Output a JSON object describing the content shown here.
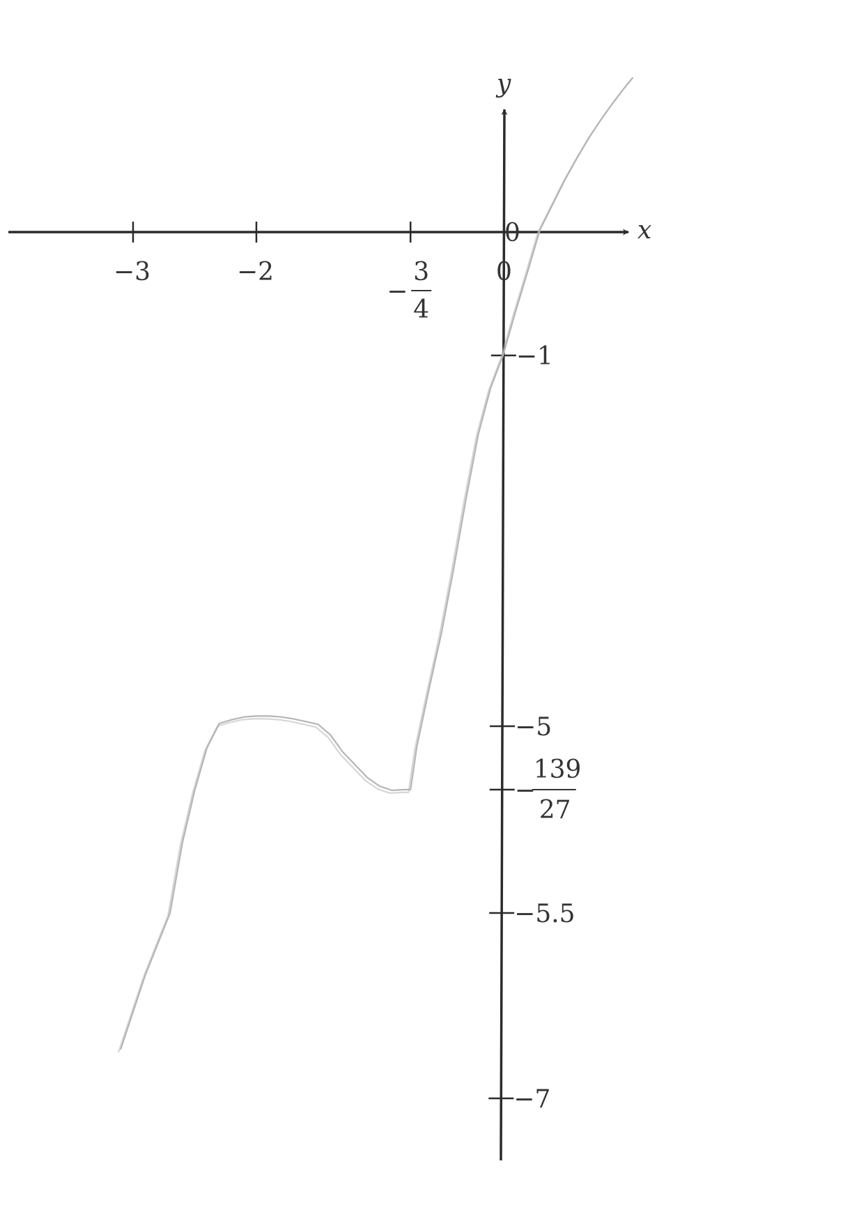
{
  "chart_data": {
    "type": "line",
    "title": "",
    "xlabel": "x",
    "ylabel": "y",
    "xlim": [
      -4.0,
      1.2
    ],
    "ylim": [
      -7.5,
      1.25
    ],
    "grid": false,
    "curve_color": "#b5b5b5",
    "axis_color": "#2b2b2b",
    "origin_labels": [
      "0",
      "0"
    ],
    "x_ticks": [
      {
        "value": -3,
        "label": "−3"
      },
      {
        "value": -2,
        "label": "−2"
      },
      {
        "value": -0.75,
        "label_sign": "−",
        "label_num": "3",
        "label_den": "4"
      }
    ],
    "y_ticks": [
      {
        "value": -1,
        "label": "−1"
      },
      {
        "value": -5,
        "label": "−5"
      },
      {
        "value": -5.148,
        "label_sign": "−",
        "label_num": "139",
        "label_den": "27"
      },
      {
        "value": -5.5,
        "label": "−5.5"
      },
      {
        "value": -7,
        "label": "−7"
      }
    ],
    "series": [
      {
        "x": [
          -3.1,
          -3.0,
          -2.9,
          -2.8,
          -2.7,
          -2.6,
          -2.5,
          -2.4,
          -2.3,
          -2.2,
          -2.1,
          -2.0,
          -1.9,
          -1.8,
          -1.7,
          -1.6,
          -1.5,
          -1.4,
          -1.3,
          -1.2,
          -1.1,
          -1.0,
          -0.9,
          -0.8,
          -0.75,
          -0.7,
          -0.6,
          -0.5,
          -0.4,
          -0.3,
          -0.2,
          -0.1,
          0.0,
          0.1,
          0.2,
          0.3,
          0.4,
          0.5,
          0.6,
          0.7,
          0.8,
          0.9,
          1.0,
          1.05
        ],
        "y": [
          -6.6,
          -6.3,
          -6.0,
          -5.75,
          -5.5,
          -5.3,
          -5.15,
          -5.05,
          -4.97,
          -4.93,
          -4.9,
          -4.89,
          -4.89,
          -4.9,
          -4.92,
          -4.95,
          -4.98,
          -5.02,
          -5.06,
          -5.09,
          -5.12,
          -5.14,
          -5.15,
          -5.148,
          -5.148,
          -5.05,
          -4.6,
          -4.0,
          -3.3,
          -2.55,
          -1.85,
          -1.35,
          -1.0,
          -0.65,
          -0.32,
          0.02,
          0.22,
          0.42,
          0.6,
          0.77,
          0.92,
          1.06,
          1.19,
          1.25
        ]
      }
    ]
  }
}
